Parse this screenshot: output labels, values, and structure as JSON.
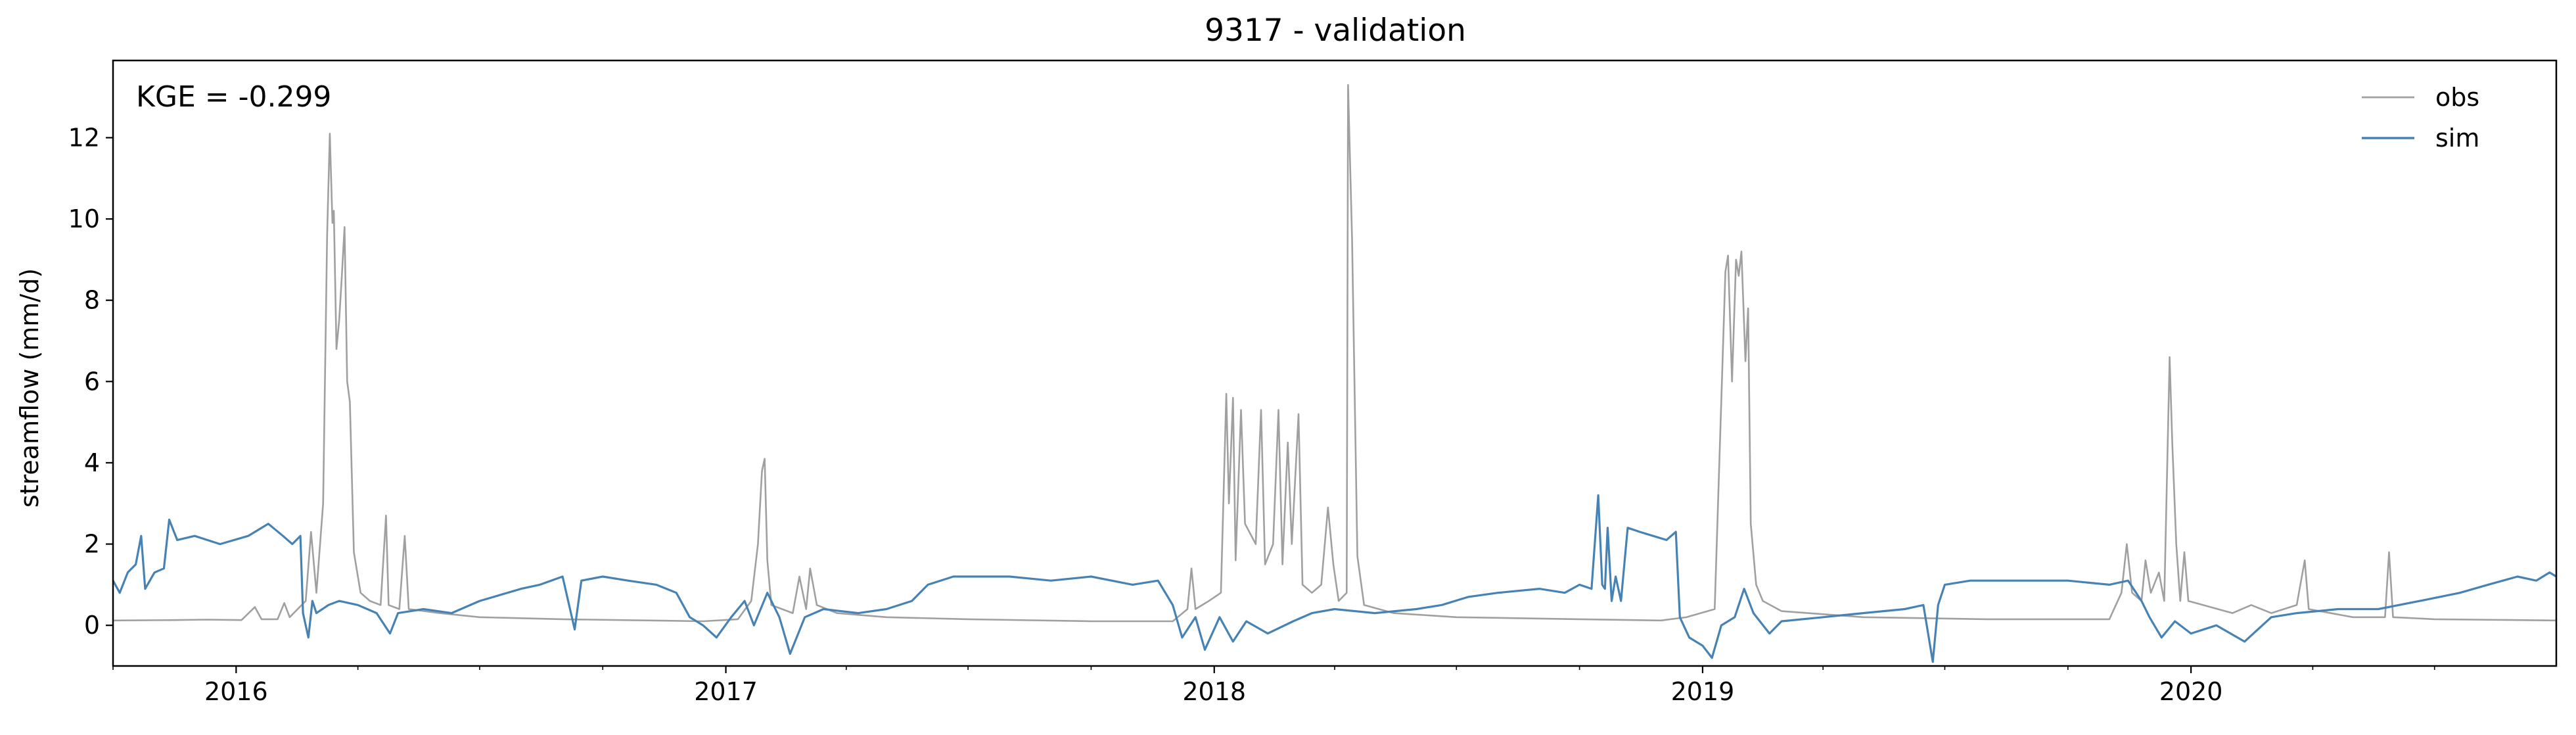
{
  "chart_data": {
    "type": "line",
    "title": "9317 - validation",
    "xlabel": "",
    "ylabel": "streamflow (mm/d)",
    "annotation": "KGE = -0.299",
    "x_range": [
      "2015-10-01",
      "2020-09-30"
    ],
    "ylim": [
      -1,
      13.9
    ],
    "y_ticks": [
      0,
      2,
      4,
      6,
      8,
      10,
      12
    ],
    "x_tick_labels": [
      "2016",
      "2017",
      "2018",
      "2019",
      "2020"
    ],
    "x_major_ticks": [
      "2016-01-01",
      "2017-01-01",
      "2018-01-01",
      "2019-01-01",
      "2020-01-01"
    ],
    "grid": false,
    "legend_position": "top-right",
    "series": [
      {
        "name": "obs",
        "color": "#a0a0a0",
        "points": [
          [
            "2015-10-01",
            0.12
          ],
          [
            "2015-11-15",
            0.13
          ],
          [
            "2015-12-10",
            0.14
          ],
          [
            "2016-01-05",
            0.13
          ],
          [
            "2016-01-15",
            0.45
          ],
          [
            "2016-01-20",
            0.15
          ],
          [
            "2016-02-01",
            0.15
          ],
          [
            "2016-02-06",
            0.55
          ],
          [
            "2016-02-10",
            0.2
          ],
          [
            "2016-02-22",
            0.6
          ],
          [
            "2016-02-26",
            2.3
          ],
          [
            "2016-03-01",
            0.8
          ],
          [
            "2016-03-06",
            3.0
          ],
          [
            "2016-03-09",
            9.6
          ],
          [
            "2016-03-11",
            12.1
          ],
          [
            "2016-03-13",
            9.9
          ],
          [
            "2016-03-14",
            10.2
          ],
          [
            "2016-03-16",
            6.8
          ],
          [
            "2016-03-18",
            7.5
          ],
          [
            "2016-03-20",
            8.6
          ],
          [
            "2016-03-22",
            9.8
          ],
          [
            "2016-03-24",
            6.0
          ],
          [
            "2016-03-26",
            5.5
          ],
          [
            "2016-03-29",
            1.8
          ],
          [
            "2016-04-03",
            0.8
          ],
          [
            "2016-04-10",
            0.6
          ],
          [
            "2016-04-18",
            0.5
          ],
          [
            "2016-04-22",
            2.7
          ],
          [
            "2016-04-24",
            0.5
          ],
          [
            "2016-05-02",
            0.4
          ],
          [
            "2016-05-06",
            2.2
          ],
          [
            "2016-05-09",
            0.4
          ],
          [
            "2016-06-01",
            0.3
          ],
          [
            "2016-07-01",
            0.2
          ],
          [
            "2016-09-01",
            0.15
          ],
          [
            "2016-12-15",
            0.1
          ],
          [
            "2017-01-10",
            0.15
          ],
          [
            "2017-01-20",
            0.6
          ],
          [
            "2017-01-25",
            2.0
          ],
          [
            "2017-01-28",
            3.8
          ],
          [
            "2017-01-30",
            4.1
          ],
          [
            "2017-02-01",
            1.6
          ],
          [
            "2017-02-04",
            0.5
          ],
          [
            "2017-02-20",
            0.3
          ],
          [
            "2017-02-25",
            1.2
          ],
          [
            "2017-03-02",
            0.4
          ],
          [
            "2017-03-05",
            1.4
          ],
          [
            "2017-03-10",
            0.5
          ],
          [
            "2017-03-25",
            0.3
          ],
          [
            "2017-05-01",
            0.2
          ],
          [
            "2017-07-01",
            0.15
          ],
          [
            "2017-10-01",
            0.1
          ],
          [
            "2017-12-01",
            0.1
          ],
          [
            "2017-12-12",
            0.4
          ],
          [
            "2017-12-15",
            1.4
          ],
          [
            "2017-12-18",
            0.4
          ],
          [
            "2017-12-28",
            0.6
          ],
          [
            "2018-01-06",
            0.8
          ],
          [
            "2018-01-10",
            5.7
          ],
          [
            "2018-01-12",
            3.0
          ],
          [
            "2018-01-15",
            5.6
          ],
          [
            "2018-01-17",
            1.6
          ],
          [
            "2018-01-21",
            5.3
          ],
          [
            "2018-01-24",
            2.5
          ],
          [
            "2018-02-01",
            2.0
          ],
          [
            "2018-02-05",
            5.3
          ],
          [
            "2018-02-08",
            1.5
          ],
          [
            "2018-02-14",
            2.0
          ],
          [
            "2018-02-18",
            5.3
          ],
          [
            "2018-02-21",
            1.5
          ],
          [
            "2018-02-25",
            4.5
          ],
          [
            "2018-02-28",
            2.0
          ],
          [
            "2018-03-05",
            5.2
          ],
          [
            "2018-03-08",
            1.0
          ],
          [
            "2018-03-15",
            0.8
          ],
          [
            "2018-03-22",
            1.0
          ],
          [
            "2018-03-27",
            2.9
          ],
          [
            "2018-03-31",
            1.5
          ],
          [
            "2018-04-04",
            0.6
          ],
          [
            "2018-04-10",
            0.8
          ],
          [
            "2018-04-11",
            13.3
          ],
          [
            "2018-04-14",
            9.5
          ],
          [
            "2018-04-18",
            1.7
          ],
          [
            "2018-04-23",
            0.5
          ],
          [
            "2018-05-15",
            0.3
          ],
          [
            "2018-07-01",
            0.2
          ],
          [
            "2018-10-01",
            0.15
          ],
          [
            "2018-12-01",
            0.12
          ],
          [
            "2018-12-20",
            0.2
          ],
          [
            "2019-01-10",
            0.4
          ],
          [
            "2019-01-18",
            8.7
          ],
          [
            "2019-01-20",
            9.1
          ],
          [
            "2019-01-23",
            6.0
          ],
          [
            "2019-01-26",
            9.0
          ],
          [
            "2019-01-28",
            8.6
          ],
          [
            "2019-01-30",
            9.2
          ],
          [
            "2019-02-02",
            6.5
          ],
          [
            "2019-02-04",
            7.8
          ],
          [
            "2019-02-06",
            2.5
          ],
          [
            "2019-02-10",
            1.0
          ],
          [
            "2019-02-15",
            0.6
          ],
          [
            "2019-03-01",
            0.35
          ],
          [
            "2019-05-01",
            0.2
          ],
          [
            "2019-08-01",
            0.15
          ],
          [
            "2019-11-01",
            0.15
          ],
          [
            "2019-11-10",
            0.8
          ],
          [
            "2019-11-14",
            2.0
          ],
          [
            "2019-11-18",
            0.8
          ],
          [
            "2019-11-25",
            0.6
          ],
          [
            "2019-11-28",
            1.6
          ],
          [
            "2019-12-02",
            0.8
          ],
          [
            "2019-12-08",
            1.3
          ],
          [
            "2019-12-12",
            0.6
          ],
          [
            "2019-12-16",
            6.6
          ],
          [
            "2019-12-18",
            4.5
          ],
          [
            "2019-12-21",
            2.0
          ],
          [
            "2019-12-24",
            0.6
          ],
          [
            "2019-12-27",
            1.8
          ],
          [
            "2019-12-30",
            0.6
          ],
          [
            "2020-02-01",
            0.3
          ],
          [
            "2020-02-15",
            0.5
          ],
          [
            "2020-03-01",
            0.3
          ],
          [
            "2020-03-20",
            0.5
          ],
          [
            "2020-03-26",
            1.6
          ],
          [
            "2020-03-29",
            0.4
          ],
          [
            "2020-05-01",
            0.2
          ],
          [
            "2020-05-25",
            0.2
          ],
          [
            "2020-05-28",
            1.8
          ],
          [
            "2020-05-31",
            0.2
          ],
          [
            "2020-07-01",
            0.15
          ],
          [
            "2020-09-30",
            0.12
          ]
        ]
      },
      {
        "name": "sim",
        "color": "#4682b4",
        "points": [
          [
            "2015-10-01",
            1.1
          ],
          [
            "2015-10-06",
            0.8
          ],
          [
            "2015-10-12",
            1.3
          ],
          [
            "2015-10-18",
            1.5
          ],
          [
            "2015-10-22",
            2.2
          ],
          [
            "2015-10-25",
            0.9
          ],
          [
            "2015-11-01",
            1.3
          ],
          [
            "2015-11-08",
            1.4
          ],
          [
            "2015-11-12",
            2.6
          ],
          [
            "2015-11-18",
            2.1
          ],
          [
            "2015-12-01",
            2.2
          ],
          [
            "2015-12-20",
            2.0
          ],
          [
            "2016-01-10",
            2.2
          ],
          [
            "2016-01-25",
            2.5
          ],
          [
            "2016-02-05",
            2.2
          ],
          [
            "2016-02-12",
            2.0
          ],
          [
            "2016-02-18",
            2.2
          ],
          [
            "2016-02-20",
            0.3
          ],
          [
            "2016-02-24",
            -0.3
          ],
          [
            "2016-02-27",
            0.6
          ],
          [
            "2016-03-01",
            0.3
          ],
          [
            "2016-03-10",
            0.5
          ],
          [
            "2016-03-18",
            0.6
          ],
          [
            "2016-04-01",
            0.5
          ],
          [
            "2016-04-15",
            0.3
          ],
          [
            "2016-04-25",
            -0.2
          ],
          [
            "2016-05-01",
            0.3
          ],
          [
            "2016-05-20",
            0.4
          ],
          [
            "2016-06-10",
            0.3
          ],
          [
            "2016-07-01",
            0.6
          ],
          [
            "2016-08-01",
            0.9
          ],
          [
            "2016-08-15",
            1.0
          ],
          [
            "2016-09-01",
            1.2
          ],
          [
            "2016-09-10",
            -0.1
          ],
          [
            "2016-09-15",
            1.1
          ],
          [
            "2016-10-01",
            1.2
          ],
          [
            "2016-10-20",
            1.1
          ],
          [
            "2016-11-10",
            1.0
          ],
          [
            "2016-11-25",
            0.8
          ],
          [
            "2016-12-05",
            0.2
          ],
          [
            "2016-12-15",
            0.0
          ],
          [
            "2016-12-25",
            -0.3
          ],
          [
            "2017-01-05",
            0.2
          ],
          [
            "2017-01-15",
            0.6
          ],
          [
            "2017-01-22",
            0.0
          ],
          [
            "2017-02-01",
            0.8
          ],
          [
            "2017-02-10",
            0.2
          ],
          [
            "2017-02-18",
            -0.7
          ],
          [
            "2017-03-01",
            0.2
          ],
          [
            "2017-03-15",
            0.4
          ],
          [
            "2017-04-10",
            0.3
          ],
          [
            "2017-05-01",
            0.4
          ],
          [
            "2017-05-20",
            0.6
          ],
          [
            "2017-06-01",
            1.0
          ],
          [
            "2017-06-20",
            1.2
          ],
          [
            "2017-08-01",
            1.2
          ],
          [
            "2017-09-01",
            1.1
          ],
          [
            "2017-10-01",
            1.2
          ],
          [
            "2017-11-01",
            1.0
          ],
          [
            "2017-11-20",
            1.1
          ],
          [
            "2017-12-01",
            0.5
          ],
          [
            "2017-12-08",
            -0.3
          ],
          [
            "2017-12-18",
            0.2
          ],
          [
            "2017-12-25",
            -0.6
          ],
          [
            "2018-01-05",
            0.2
          ],
          [
            "2018-01-15",
            -0.4
          ],
          [
            "2018-01-25",
            0.1
          ],
          [
            "2018-02-10",
            -0.2
          ],
          [
            "2018-03-01",
            0.1
          ],
          [
            "2018-03-15",
            0.3
          ],
          [
            "2018-04-01",
            0.4
          ],
          [
            "2018-05-01",
            0.3
          ],
          [
            "2018-06-01",
            0.4
          ],
          [
            "2018-06-20",
            0.5
          ],
          [
            "2018-07-10",
            0.7
          ],
          [
            "2018-08-01",
            0.8
          ],
          [
            "2018-09-01",
            0.9
          ],
          [
            "2018-09-20",
            0.8
          ],
          [
            "2018-10-01",
            1.0
          ],
          [
            "2018-10-10",
            0.9
          ],
          [
            "2018-10-15",
            3.2
          ],
          [
            "2018-10-18",
            1.0
          ],
          [
            "2018-10-20",
            0.9
          ],
          [
            "2018-10-22",
            2.4
          ],
          [
            "2018-10-25",
            0.6
          ],
          [
            "2018-10-28",
            1.2
          ],
          [
            "2018-11-01",
            0.6
          ],
          [
            "2018-11-06",
            2.4
          ],
          [
            "2018-11-15",
            2.3
          ],
          [
            "2018-11-25",
            2.2
          ],
          [
            "2018-12-05",
            2.1
          ],
          [
            "2018-12-12",
            2.3
          ],
          [
            "2018-12-15",
            0.2
          ],
          [
            "2018-12-22",
            -0.3
          ],
          [
            "2019-01-01",
            -0.5
          ],
          [
            "2019-01-08",
            -0.8
          ],
          [
            "2019-01-15",
            0.0
          ],
          [
            "2019-01-25",
            0.2
          ],
          [
            "2019-02-01",
            0.9
          ],
          [
            "2019-02-08",
            0.3
          ],
          [
            "2019-02-20",
            -0.2
          ],
          [
            "2019-03-01",
            0.1
          ],
          [
            "2019-04-01",
            0.2
          ],
          [
            "2019-05-01",
            0.3
          ],
          [
            "2019-06-01",
            0.4
          ],
          [
            "2019-06-15",
            0.5
          ],
          [
            "2019-06-22",
            -0.9
          ],
          [
            "2019-06-26",
            0.5
          ],
          [
            "2019-07-01",
            1.0
          ],
          [
            "2019-07-20",
            1.1
          ],
          [
            "2019-09-01",
            1.1
          ],
          [
            "2019-10-01",
            1.1
          ],
          [
            "2019-11-01",
            1.0
          ],
          [
            "2019-11-15",
            1.1
          ],
          [
            "2019-11-25",
            0.6
          ],
          [
            "2019-12-01",
            0.2
          ],
          [
            "2019-12-10",
            -0.3
          ],
          [
            "2019-12-20",
            0.1
          ],
          [
            "2020-01-01",
            -0.2
          ],
          [
            "2020-01-20",
            0.0
          ],
          [
            "2020-02-10",
            -0.4
          ],
          [
            "2020-03-01",
            0.2
          ],
          [
            "2020-03-20",
            0.3
          ],
          [
            "2020-04-20",
            0.4
          ],
          [
            "2020-05-20",
            0.4
          ],
          [
            "2020-06-20",
            0.6
          ],
          [
            "2020-07-20",
            0.8
          ],
          [
            "2020-08-10",
            1.0
          ],
          [
            "2020-09-01",
            1.2
          ],
          [
            "2020-09-15",
            1.1
          ],
          [
            "2020-09-25",
            1.3
          ],
          [
            "2020-09-30",
            1.2
          ]
        ]
      }
    ]
  }
}
